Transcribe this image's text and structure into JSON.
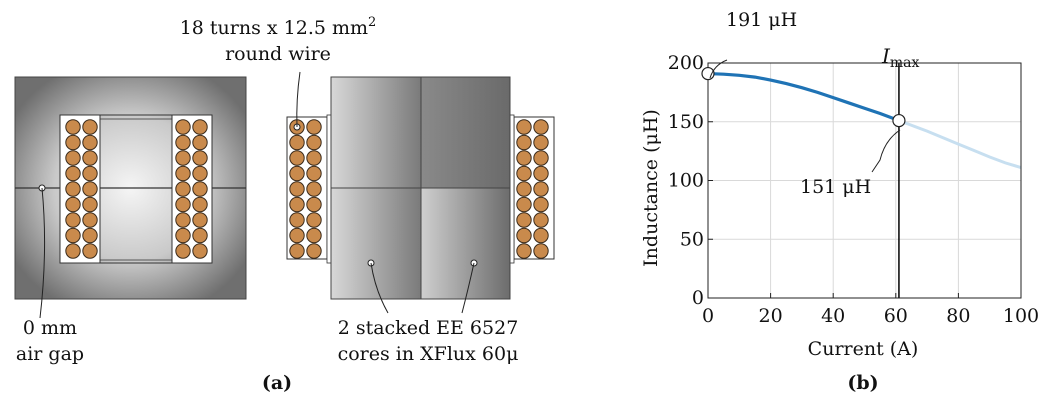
{
  "figure_a": {
    "caption": "(a)",
    "winding_label_line1": "18 turns x 12.5 mm",
    "winding_label_sup": "2",
    "winding_label_line2": "round wire",
    "gap_label_line1": "0 mm",
    "gap_label_line2": "air gap",
    "core_label_line1": "2 stacked EE 6527",
    "core_label_line2": "cores in XFlux 60μ",
    "colors": {
      "core_dark": "#6f6f6f",
      "core_light": "#f2f2f2",
      "wire": "#c98a4c"
    }
  },
  "figure_b": {
    "caption": "(b)",
    "imax_label": "I",
    "imax_sub": "max",
    "annotation_start": "191 μH",
    "annotation_end": "151 μH",
    "colors": {
      "curve": "#1f73b5",
      "curve_faded": "#c7dff0"
    }
  },
  "chart_data": {
    "type": "line",
    "xlabel": "Current (A)",
    "ylabel": "Inductance (μH)",
    "xlim": [
      0,
      100
    ],
    "ylim": [
      0,
      200
    ],
    "xticks": [
      0,
      20,
      40,
      60,
      80,
      100
    ],
    "yticks": [
      0,
      50,
      100,
      150,
      200
    ],
    "grid": true,
    "imax": 61,
    "series": [
      {
        "x": [
          0,
          5,
          10,
          15,
          20,
          25,
          30,
          35,
          40,
          45,
          50,
          55,
          61,
          65,
          70,
          75,
          80,
          85,
          90,
          95,
          100
        ],
        "y": [
          191,
          190.5,
          189.5,
          188,
          185.5,
          182.5,
          179,
          175,
          170.5,
          166,
          161.5,
          157,
          151,
          147,
          142,
          136.5,
          131,
          125.5,
          120,
          115,
          111
        ]
      }
    ]
  }
}
